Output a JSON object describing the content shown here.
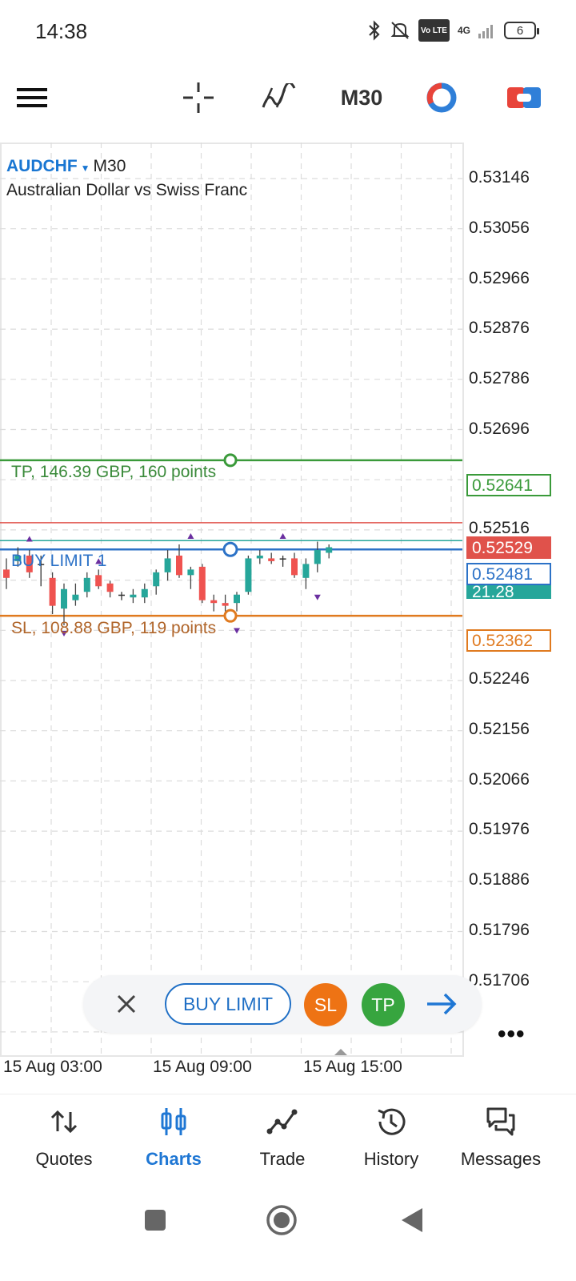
{
  "status": {
    "time": "14:38",
    "net": "4G",
    "volte": "Vo LTE",
    "battery": "6"
  },
  "toolbar": {
    "timeframe": "M30"
  },
  "chart": {
    "symbol": "AUDCHF",
    "timeframe": "M30",
    "description": "Australian Dollar vs Swiss Franc",
    "price_axis": [
      "0.53146",
      "0.53056",
      "0.52966",
      "0.52876",
      "0.52786",
      "0.52696",
      "0.52516",
      "0.52246",
      "0.52156",
      "0.52066",
      "0.51976",
      "0.51886",
      "0.51796",
      "0.51706"
    ],
    "time_axis": [
      "15 Aug 03:00",
      "15 Aug 09:00",
      "15 Aug 15:00"
    ],
    "tp_label": "TP, 146.39 GBP, 160 points",
    "tp_price": "0.52641",
    "order_label": "BUY LIMIT 1",
    "order_price": "0.52481",
    "ask_price": "0.52529",
    "bid_partial": "21.28",
    "sl_label": "SL, 108.88 GBP, 119 points",
    "sl_price": "0.52362",
    "colors": {
      "tp": "#3a9a3a",
      "order": "#2c72c7",
      "ask": "#e0524b",
      "bid": "#26a69a",
      "sl": "#e07a1f",
      "bull": "#26a69a",
      "bear": "#ef5350"
    }
  },
  "order_bar": {
    "close_icon": "close-icon",
    "buy_limit": "BUY LIMIT",
    "sl": "SL",
    "tp": "TP",
    "next_icon": "arrow-right-icon"
  },
  "more": "•••",
  "nav": {
    "items": [
      {
        "label": "Quotes",
        "icon": "quotes-icon"
      },
      {
        "label": "Charts",
        "icon": "charts-icon",
        "active": true
      },
      {
        "label": "Trade",
        "icon": "trade-icon"
      },
      {
        "label": "History",
        "icon": "history-icon"
      },
      {
        "label": "Messages",
        "icon": "messages-icon"
      }
    ]
  }
}
